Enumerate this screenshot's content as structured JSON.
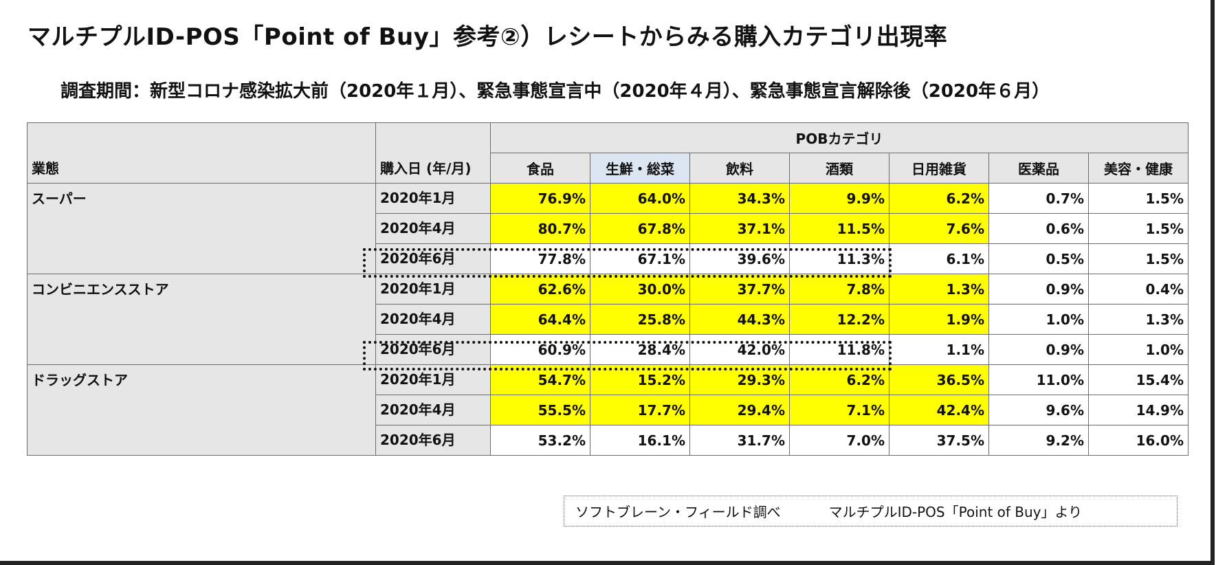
{
  "title": "マルチプルID-POS「Point of Buy」参考②）レシートからみる購入カテゴリ出現率",
  "subtitle": "調査期間：新型コロナ感染拡大前（2020年１月）、緊急事態宣言中（2020年４月）、緊急事態宣言解除後（2020年６月）",
  "table": {
    "segment_header": "業態",
    "date_header": "購入日 (年/月)",
    "category_group": "POBカテゴリ",
    "columns": [
      "食品",
      "生鮮・総菜",
      "飲料",
      "酒類",
      "日用雑貨",
      "医薬品",
      "美容・健康"
    ],
    "groups": [
      {
        "segment": "スーパー",
        "rows": [
          {
            "date": "2020年1月",
            "values": [
              "76.9%",
              "64.0%",
              "34.3%",
              "9.9%",
              "6.2%",
              "0.7%",
              "1.5%"
            ]
          },
          {
            "date": "2020年4月",
            "values": [
              "80.7%",
              "67.8%",
              "37.1%",
              "11.5%",
              "7.6%",
              "0.6%",
              "1.5%"
            ]
          },
          {
            "date": "2020年6月",
            "values": [
              "77.8%",
              "67.1%",
              "39.6%",
              "11.3%",
              "6.1%",
              "0.5%",
              "1.5%"
            ]
          }
        ]
      },
      {
        "segment": "コンビニエンスストア",
        "rows": [
          {
            "date": "2020年1月",
            "values": [
              "62.6%",
              "30.0%",
              "37.7%",
              "7.8%",
              "1.3%",
              "0.9%",
              "0.4%"
            ]
          },
          {
            "date": "2020年4月",
            "values": [
              "64.4%",
              "25.8%",
              "44.3%",
              "12.2%",
              "1.9%",
              "1.0%",
              "1.3%"
            ]
          },
          {
            "date": "2020年6月",
            "values": [
              "60.9%",
              "28.4%",
              "42.0%",
              "11.8%",
              "1.1%",
              "0.9%",
              "1.0%"
            ]
          }
        ]
      },
      {
        "segment": "ドラッグストア",
        "rows": [
          {
            "date": "2020年1月",
            "values": [
              "54.7%",
              "15.2%",
              "29.3%",
              "6.2%",
              "36.5%",
              "11.0%",
              "15.4%"
            ]
          },
          {
            "date": "2020年4月",
            "values": [
              "55.5%",
              "17.7%",
              "29.4%",
              "7.1%",
              "42.4%",
              "9.6%",
              "14.9%"
            ]
          },
          {
            "date": "2020年6月",
            "values": [
              "53.2%",
              "16.1%",
              "31.7%",
              "7.0%",
              "37.5%",
              "9.2%",
              "16.0%"
            ]
          }
        ]
      }
    ]
  },
  "source_note": {
    "left": "ソフトブレーン・フィールド調べ",
    "right": "マルチプルID-POS「Point of Buy」より"
  },
  "colors": {
    "highlight": "#ffff00",
    "header_gray": "#e6e6e6",
    "header_blue": "#dce6f2"
  }
}
